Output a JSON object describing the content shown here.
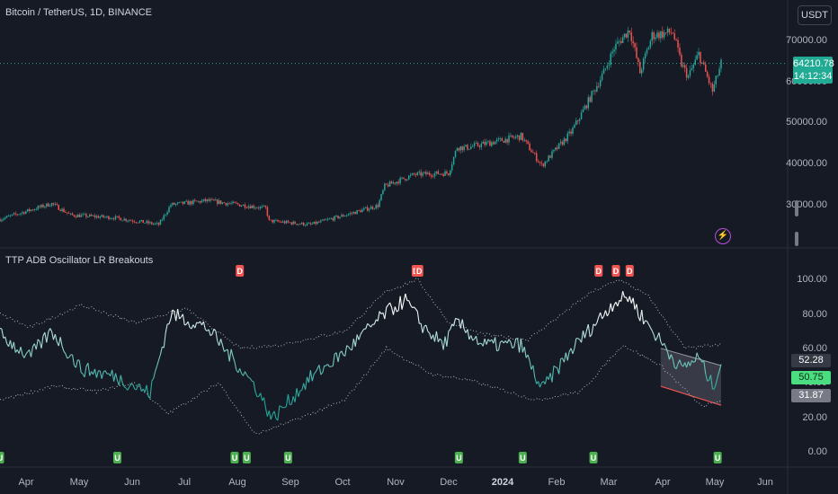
{
  "symbol_title": "Bitcoin / TetherUS, 1D, BINANCE",
  "indicator_title": "TTP ADB Oscillator LR Breakouts",
  "currency_button": "USDT",
  "price_tag": {
    "price": "64210.78",
    "countdown": "14:12:34"
  },
  "price_axis": [
    "70000.00",
    "60000.00",
    "50000.00",
    "40000.00",
    "30000.00"
  ],
  "osc_axis": [
    "100.00",
    "80.00",
    "60.00",
    "40.00",
    "20.00",
    "0.00"
  ],
  "osc_tags": [
    {
      "value": "52.28",
      "color": "#363a45",
      "textColor": "#ffffff"
    },
    {
      "value": "50.75",
      "color": "#4ade80",
      "textColor": "#0b2e13"
    },
    {
      "value": "31.87",
      "color": "#787b86",
      "textColor": "#ffffff"
    }
  ],
  "time_axis": [
    "Apr",
    "May",
    "Jun",
    "Jul",
    "Aug",
    "Sep",
    "Oct",
    "Nov",
    "Dec",
    "2024",
    "Feb",
    "Mar",
    "Apr",
    "May",
    "Jun"
  ],
  "d_marker_label": "D",
  "u_marker_label": "U",
  "colors": {
    "up": "#26a69a",
    "down": "#ef5350",
    "osc_low": "#26a69a",
    "osc_high": "#ffffff",
    "marker_d": "#f05350",
    "marker_u": "#4caf50"
  },
  "chart_data": [
    {
      "type": "candlestick",
      "title": "Bitcoin / TetherUS, 1D, BINANCE",
      "x_range": [
        "2023-03-15",
        "2024-05-06"
      ],
      "ylim": [
        25000,
        74000
      ],
      "last_price": 64210.78,
      "close_path": [
        [
          "2023-03-15",
          26500
        ],
        [
          "2023-04-14",
          30300
        ],
        [
          "2023-04-25",
          27500
        ],
        [
          "2023-05-20",
          26900
        ],
        [
          "2023-06-15",
          25200
        ],
        [
          "2023-06-22",
          30000
        ],
        [
          "2023-07-13",
          31000
        ],
        [
          "2023-08-16",
          29200
        ],
        [
          "2023-08-18",
          26100
        ],
        [
          "2023-09-11",
          25200
        ],
        [
          "2023-10-01",
          27500
        ],
        [
          "2023-10-20",
          29800
        ],
        [
          "2023-10-24",
          34500
        ],
        [
          "2023-11-10",
          37300
        ],
        [
          "2023-11-30",
          37700
        ],
        [
          "2023-12-05",
          44000
        ],
        [
          "2023-12-10",
          43800
        ],
        [
          "2024-01-11",
          46600
        ],
        [
          "2024-01-23",
          39500
        ],
        [
          "2024-02-09",
          47500
        ],
        [
          "2024-02-15",
          52000
        ],
        [
          "2024-02-28",
          62000
        ],
        [
          "2024-03-05",
          68000
        ],
        [
          "2024-03-14",
          72500
        ],
        [
          "2024-03-20",
          62000
        ],
        [
          "2024-03-27",
          71000
        ],
        [
          "2024-04-08",
          71800
        ],
        [
          "2024-04-13",
          64000
        ],
        [
          "2024-04-17",
          61000
        ],
        [
          "2024-04-23",
          66500
        ],
        [
          "2024-05-01",
          57500
        ],
        [
          "2024-05-06",
          64210
        ]
      ]
    },
    {
      "type": "line",
      "title": "TTP ADB Oscillator LR Breakouts",
      "ylim": [
        0,
        105
      ],
      "series_osc": [
        [
          "2023-03-15",
          68
        ],
        [
          "2023-04-01",
          55
        ],
        [
          "2023-04-14",
          70
        ],
        [
          "2023-05-01",
          48
        ],
        [
          "2023-05-20",
          44
        ],
        [
          "2023-06-10",
          34
        ],
        [
          "2023-06-22",
          80
        ],
        [
          "2023-07-13",
          72
        ],
        [
          "2023-08-10",
          38
        ],
        [
          "2023-08-20",
          19
        ],
        [
          "2023-09-10",
          42
        ],
        [
          "2023-10-01",
          58
        ],
        [
          "2023-10-24",
          80
        ],
        [
          "2023-11-05",
          88
        ],
        [
          "2023-11-15",
          73
        ],
        [
          "2023-11-27",
          62
        ],
        [
          "2023-12-05",
          75
        ],
        [
          "2023-12-20",
          62
        ],
        [
          "2024-01-11",
          62
        ],
        [
          "2024-01-23",
          36
        ],
        [
          "2024-02-10",
          60
        ],
        [
          "2024-02-28",
          80
        ],
        [
          "2024-03-05",
          87
        ],
        [
          "2024-03-14",
          90
        ],
        [
          "2024-03-20",
          80
        ],
        [
          "2024-04-01",
          64
        ],
        [
          "2024-04-13",
          48
        ],
        [
          "2024-04-23",
          55
        ],
        [
          "2024-05-01",
          38
        ],
        [
          "2024-05-06",
          50.75
        ]
      ],
      "series_upper_band": [
        [
          "2023-03-15",
          80
        ],
        [
          "2023-04-01",
          72
        ],
        [
          "2023-05-01",
          85
        ],
        [
          "2023-06-01",
          75
        ],
        [
          "2023-07-01",
          83
        ],
        [
          "2023-08-01",
          60
        ],
        [
          "2023-08-25",
          62
        ],
        [
          "2023-10-01",
          70
        ],
        [
          "2023-10-25",
          93
        ],
        [
          "2023-11-12",
          100
        ],
        [
          "2023-11-30",
          75
        ],
        [
          "2023-12-20",
          68
        ],
        [
          "2024-01-15",
          65
        ],
        [
          "2024-02-20",
          92
        ],
        [
          "2024-03-08",
          100
        ],
        [
          "2024-03-25",
          90
        ],
        [
          "2024-04-15",
          60
        ],
        [
          "2024-05-06",
          62
        ]
      ],
      "series_lower_band": [
        [
          "2023-03-15",
          30
        ],
        [
          "2023-04-15",
          38
        ],
        [
          "2023-05-10",
          35
        ],
        [
          "2023-06-01",
          40
        ],
        [
          "2023-06-20",
          22
        ],
        [
          "2023-07-20",
          40
        ],
        [
          "2023-08-10",
          10
        ],
        [
          "2023-09-01",
          18
        ],
        [
          "2023-10-01",
          30
        ],
        [
          "2023-10-25",
          60
        ],
        [
          "2023-11-20",
          45
        ],
        [
          "2023-12-10",
          42
        ],
        [
          "2024-01-20",
          30
        ],
        [
          "2024-02-15",
          35
        ],
        [
          "2024-03-10",
          62
        ],
        [
          "2024-04-01",
          50
        ],
        [
          "2024-04-25",
          26
        ],
        [
          "2024-05-06",
          30
        ]
      ],
      "regression_channel": {
        "start": "2024-04-01",
        "end": "2024-05-06",
        "upper": [
          60,
          50
        ],
        "lower": [
          38,
          27
        ]
      },
      "d_markers": [
        "2023-08-01",
        "2023-11-11",
        "2023-11-13",
        "2024-02-25",
        "2024-03-06",
        "2024-03-14"
      ],
      "u_markers": [
        "2023-03-15",
        "2023-05-22",
        "2023-07-29",
        "2023-08-05",
        "2023-08-29",
        "2023-12-06",
        "2024-01-12",
        "2024-02-22",
        "2024-05-04"
      ]
    }
  ]
}
